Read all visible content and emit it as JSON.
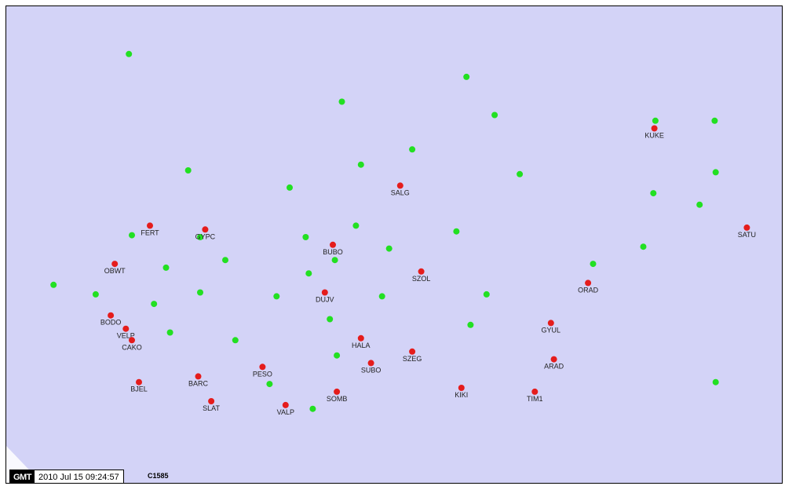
{
  "map": {
    "background_color": "#d3d3f7",
    "permanent_color": "#e51c1c",
    "campaign_color": "#22e022",
    "red_stations": [
      {
        "name": "KUKE",
        "lon": 23.95,
        "lat": 47.22
      },
      {
        "name": "SALG",
        "lon": 21.42,
        "lat": 46.92
      },
      {
        "name": "SATU",
        "lon": 24.87,
        "lat": 46.7
      },
      {
        "name": "FERT",
        "lon": 18.93,
        "lat": 46.71
      },
      {
        "name": "GYPC",
        "lon": 19.48,
        "lat": 46.69
      },
      {
        "name": "BUBO",
        "lon": 20.75,
        "lat": 46.61
      },
      {
        "name": "OBWT",
        "lon": 18.58,
        "lat": 46.51
      },
      {
        "name": "SZOL",
        "lon": 21.63,
        "lat": 46.47
      },
      {
        "name": "ORAD",
        "lon": 23.29,
        "lat": 46.41
      },
      {
        "name": "DUJV",
        "lon": 20.67,
        "lat": 46.36
      },
      {
        "name": "BODO",
        "lon": 18.54,
        "lat": 46.24
      },
      {
        "name": "VELP",
        "lon": 18.69,
        "lat": 46.17
      },
      {
        "name": "GYUL",
        "lon": 22.92,
        "lat": 46.2
      },
      {
        "name": "CAKO",
        "lon": 18.75,
        "lat": 46.11
      },
      {
        "name": "HALA",
        "lon": 21.03,
        "lat": 46.12
      },
      {
        "name": "SZEG",
        "lon": 21.54,
        "lat": 46.05
      },
      {
        "name": "ARAD",
        "lon": 22.95,
        "lat": 46.01
      },
      {
        "name": "SUBO",
        "lon": 21.13,
        "lat": 45.99
      },
      {
        "name": "PESO",
        "lon": 20.05,
        "lat": 45.97
      },
      {
        "name": "BARC",
        "lon": 19.41,
        "lat": 45.92
      },
      {
        "name": "BJEL",
        "lon": 18.82,
        "lat": 45.89
      },
      {
        "name": "KIKI",
        "lon": 22.03,
        "lat": 45.86
      },
      {
        "name": "TIM1",
        "lon": 22.76,
        "lat": 45.84
      },
      {
        "name": "SOMB",
        "lon": 20.79,
        "lat": 45.84
      },
      {
        "name": "SLAT",
        "lon": 19.54,
        "lat": 45.79
      },
      {
        "name": "VALP",
        "lon": 20.28,
        "lat": 45.77
      }
    ],
    "green_stations": [
      {
        "lon": 18.72,
        "lat": 47.61
      },
      {
        "lon": 22.08,
        "lat": 47.49
      },
      {
        "lon": 20.84,
        "lat": 47.36
      },
      {
        "lon": 22.36,
        "lat": 47.29
      },
      {
        "lon": 23.96,
        "lat": 47.26
      },
      {
        "lon": 24.55,
        "lat": 47.26
      },
      {
        "lon": 21.54,
        "lat": 47.11
      },
      {
        "lon": 21.03,
        "lat": 47.03
      },
      {
        "lon": 19.31,
        "lat": 47.0
      },
      {
        "lon": 22.61,
        "lat": 46.98
      },
      {
        "lon": 24.56,
        "lat": 46.99
      },
      {
        "lon": 20.32,
        "lat": 46.91
      },
      {
        "lon": 23.94,
        "lat": 46.88
      },
      {
        "lon": 24.4,
        "lat": 46.82
      },
      {
        "lon": 20.98,
        "lat": 46.71
      },
      {
        "lon": 21.98,
        "lat": 46.68
      },
      {
        "lon": 18.75,
        "lat": 46.66
      },
      {
        "lon": 20.48,
        "lat": 46.65
      },
      {
        "lon": 19.43,
        "lat": 46.65
      },
      {
        "lon": 25.55,
        "lat": 46.65
      },
      {
        "lon": 21.31,
        "lat": 46.59
      },
      {
        "lon": 23.84,
        "lat": 46.6
      },
      {
        "lon": 20.77,
        "lat": 46.53
      },
      {
        "lon": 19.68,
        "lat": 46.53
      },
      {
        "lon": 23.34,
        "lat": 46.51
      },
      {
        "lon": 19.09,
        "lat": 46.49
      },
      {
        "lon": 20.51,
        "lat": 46.46
      },
      {
        "lon": 17.97,
        "lat": 46.4
      },
      {
        "lon": 18.39,
        "lat": 46.35
      },
      {
        "lon": 19.43,
        "lat": 46.36
      },
      {
        "lon": 20.19,
        "lat": 46.34
      },
      {
        "lon": 21.24,
        "lat": 46.34
      },
      {
        "lon": 22.28,
        "lat": 46.35
      },
      {
        "lon": 18.97,
        "lat": 46.3
      },
      {
        "lon": 20.72,
        "lat": 46.22
      },
      {
        "lon": 22.12,
        "lat": 46.19
      },
      {
        "lon": 19.13,
        "lat": 46.15
      },
      {
        "lon": 19.78,
        "lat": 46.11
      },
      {
        "lon": 20.79,
        "lat": 46.03
      },
      {
        "lon": 20.12,
        "lat": 45.88
      },
      {
        "lon": 24.56,
        "lat": 45.89
      },
      {
        "lon": 20.55,
        "lat": 45.75
      }
    ]
  },
  "footer": {
    "logo": "GMT",
    "timestamp": "2010 Jul 15 09:24:57",
    "code": "C1585"
  }
}
